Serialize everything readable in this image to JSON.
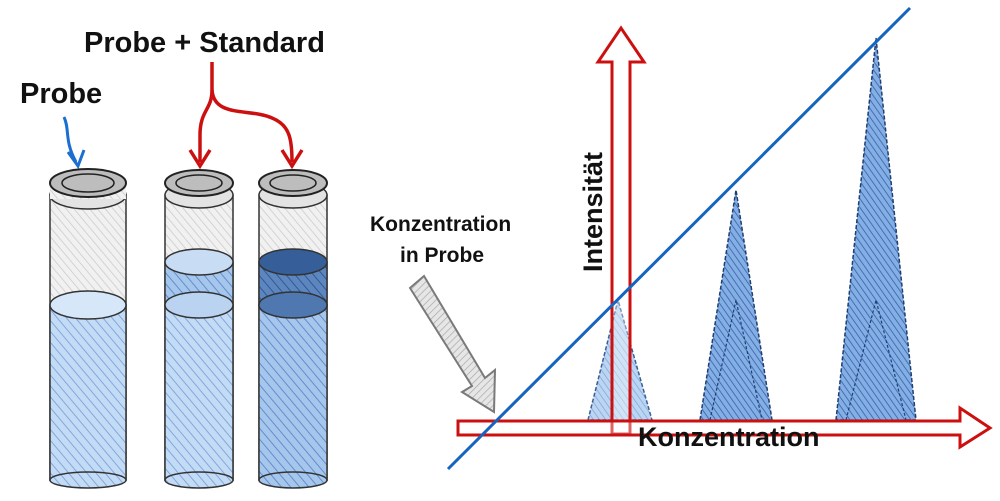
{
  "labels": {
    "probe": "Probe",
    "probe_standard": "Probe + Standard",
    "konzentration_in_probe_line1": "Konzentration",
    "konzentration_in_probe_line2": "in Probe",
    "y_axis": "Intensität",
    "x_axis": "Konzentration"
  },
  "colors": {
    "blue_arrow": "#1a6fd0",
    "red_arrow": "#cc1010",
    "liquid_light": "#a9c9ee",
    "liquid_dark": "#4a79b8",
    "fit_line": "#1565c0",
    "peak_fill": "#6f9fde",
    "gray_arrow": "#9a9a9a"
  },
  "icons": {
    "probe_pointer": "arrow-down-icon",
    "standard_pointers": "forked-arrow-icon",
    "concentration_pointer": "diagonal-arrow-icon"
  }
}
